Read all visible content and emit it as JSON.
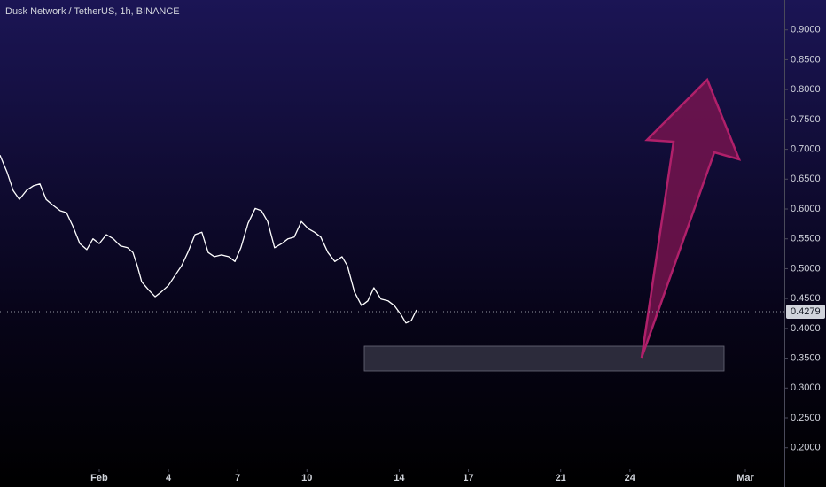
{
  "chart_data": {
    "type": "line",
    "title": "Dusk Network / TetherUS, 1h, BINANCE",
    "x": [
      -3.3,
      -2.99,
      -2.73,
      -2.46,
      -2.15,
      -1.84,
      -1.57,
      -1.3,
      -0.99,
      -0.69,
      -0.42,
      -0.15,
      0.16,
      0.46,
      0.73,
      1.0,
      1.31,
      1.61,
      1.92,
      2.23,
      2.46,
      2.65,
      2.84,
      3.15,
      3.42,
      3.69,
      4.0,
      4.31,
      4.57,
      4.84,
      5.15,
      5.45,
      5.72,
      5.99,
      6.3,
      6.61,
      6.88,
      7.14,
      7.45,
      7.76,
      8.03,
      8.3,
      8.6,
      8.91,
      9.18,
      9.45,
      9.76,
      10.06,
      10.33,
      10.6,
      10.91,
      11.21,
      11.52,
      11.75,
      12.06,
      12.37,
      12.64,
      12.9,
      13.21,
      13.52,
      13.79,
      14.06,
      14.29,
      14.52,
      14.75
    ],
    "values": [
      0.69,
      0.661,
      0.631,
      0.616,
      0.631,
      0.639,
      0.642,
      0.616,
      0.606,
      0.597,
      0.594,
      0.572,
      0.542,
      0.532,
      0.55,
      0.542,
      0.557,
      0.55,
      0.538,
      0.535,
      0.527,
      0.505,
      0.478,
      0.464,
      0.453,
      0.461,
      0.472,
      0.49,
      0.505,
      0.527,
      0.557,
      0.561,
      0.527,
      0.52,
      0.523,
      0.52,
      0.512,
      0.535,
      0.576,
      0.601,
      0.597,
      0.579,
      0.535,
      0.542,
      0.55,
      0.553,
      0.579,
      0.567,
      0.561,
      0.553,
      0.527,
      0.512,
      0.52,
      0.505,
      0.461,
      0.438,
      0.446,
      0.468,
      0.449,
      0.446,
      0.438,
      0.424,
      0.409,
      0.413,
      0.431
    ],
    "color": "#ffffff",
    "last_price": 0.4279,
    "xlim": [
      -3.3,
      30.69
    ],
    "xticks": [
      {
        "value": 1,
        "label": "Feb"
      },
      4,
      7,
      10,
      14,
      17,
      21,
      24,
      {
        "value": 29,
        "label": "Mar"
      }
    ],
    "ylim": [
      0.164,
      0.95
    ],
    "yticks": [
      {
        "value": 0.2,
        "label": "0.2000"
      },
      {
        "value": 0.25,
        "label": "0.2500"
      },
      {
        "value": 0.3,
        "label": "0.3000"
      },
      {
        "value": 0.35,
        "label": "0.3500"
      },
      {
        "value": 0.4,
        "label": "0.4000"
      },
      {
        "value": 0.45,
        "label": "0.4500"
      },
      {
        "value": 0.5,
        "label": "0.5000"
      },
      {
        "value": 0.55,
        "label": "0.5500"
      },
      {
        "value": 0.6,
        "label": "0.6000"
      },
      {
        "value": 0.65,
        "label": "0.6500"
      },
      {
        "value": 0.7,
        "label": "0.7000"
      },
      {
        "value": 0.75,
        "label": "0.7500"
      },
      {
        "value": 0.8,
        "label": "0.8000"
      },
      {
        "value": 0.85,
        "label": "0.8500"
      },
      {
        "value": 0.9,
        "label": "0.9000"
      }
    ]
  }
}
